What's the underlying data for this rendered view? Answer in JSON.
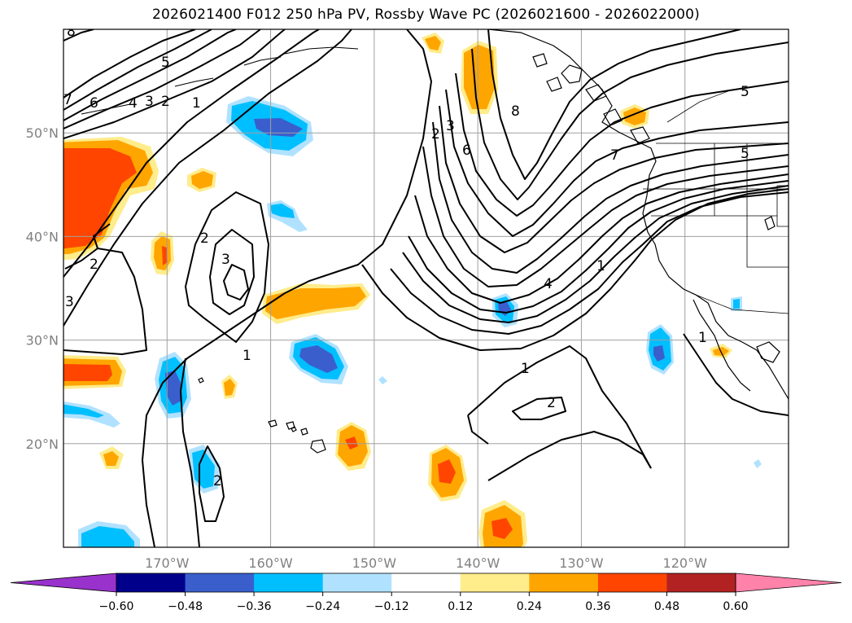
{
  "title": "2026021400 F012 250 hPa PV, Rossby Wave PC (2026021600 - 2026022000)",
  "map": {
    "lat_range": [
      10,
      60
    ],
    "lon_range": [
      -180,
      -110
    ],
    "lat_ticks": [
      {
        "value": 20,
        "label": "20°N"
      },
      {
        "value": 30,
        "label": "30°N"
      },
      {
        "value": 40,
        "label": "40°N"
      },
      {
        "value": 50,
        "label": "50°N"
      }
    ],
    "lon_ticks": [
      {
        "value": -170,
        "label": "170°W"
      },
      {
        "value": -160,
        "label": "160°W"
      },
      {
        "value": -150,
        "label": "150°W"
      },
      {
        "value": -140,
        "label": "140°W"
      },
      {
        "value": -130,
        "label": "130°W"
      },
      {
        "value": -120,
        "label": "120°W"
      }
    ],
    "gridlines": true,
    "contour_labels": [
      "8",
      "7",
      "6",
      "5",
      "4",
      "3",
      "2",
      "1",
      "2",
      "3",
      "2",
      "3",
      "2",
      "3",
      "6",
      "8",
      "7",
      "5",
      "5",
      "4",
      "1",
      "1",
      "2",
      "1",
      "1",
      "2"
    ]
  },
  "colorbar": {
    "extend": "both",
    "levels": [
      -0.6,
      -0.48,
      -0.36,
      -0.24,
      -0.12,
      0.12,
      0.24,
      0.36,
      0.48,
      0.6
    ],
    "labels": [
      "−0.60",
      "−0.48",
      "−0.36",
      "−0.24",
      "−0.12",
      "0.12",
      "0.24",
      "0.36",
      "0.48",
      "0.60"
    ],
    "colors": [
      "#9932cc",
      "#00008b",
      "#3a5fcd",
      "#00bfff",
      "#b0e2ff",
      "#ffffff",
      "#ffec8b",
      "#ffa500",
      "#ff4500",
      "#b22222",
      "#ff82ab"
    ]
  }
}
